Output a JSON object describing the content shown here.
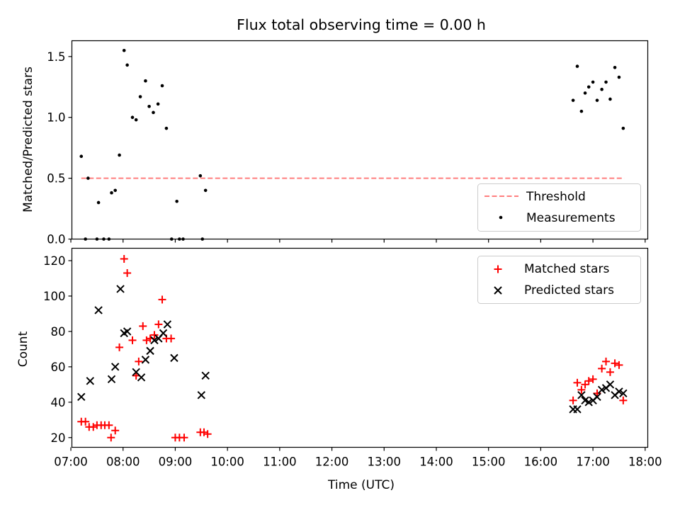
{
  "figure": {
    "title": "Flux total observing time = 0.00 h"
  },
  "colors": {
    "threshold": "#ff7f7f",
    "measurement": "#000000",
    "matched": "#ff0000",
    "predicted": "#000000"
  },
  "chart_data": [
    {
      "type": "scatter",
      "ylabel": "Matched/Predicted stars",
      "ylim": [
        0,
        1.63
      ],
      "xlim": [
        7.02,
        18.05
      ],
      "yticks": [
        0.0,
        0.5,
        1.0,
        1.5
      ],
      "ytick_labels": [
        "0.0",
        "0.5",
        "1.0",
        "1.5"
      ],
      "grid": false,
      "legend_position": "lower-right",
      "series": [
        {
          "name": "Threshold",
          "kind": "line",
          "style": "dashed",
          "x": [
            7.2,
            17.6
          ],
          "y": [
            0.5,
            0.5
          ]
        },
        {
          "name": "Measurements",
          "kind": "points",
          "x": [
            7.2,
            7.28,
            7.33,
            7.5,
            7.53,
            7.63,
            7.73,
            7.78,
            7.85,
            7.93,
            8.02,
            8.08,
            8.18,
            8.25,
            8.33,
            8.43,
            8.5,
            8.58,
            8.67,
            8.75,
            8.83,
            8.93,
            9.03,
            9.08,
            9.15,
            9.48,
            9.52,
            9.58,
            16.62,
            16.7,
            16.78,
            16.85,
            16.92,
            17.0,
            17.08,
            17.17,
            17.25,
            17.33,
            17.42,
            17.5,
            17.58
          ],
          "y": [
            0.68,
            0.0,
            0.5,
            0.0,
            0.3,
            0.0,
            0.0,
            0.38,
            0.4,
            0.69,
            1.55,
            1.43,
            1.0,
            0.98,
            1.17,
            1.3,
            1.09,
            1.04,
            1.11,
            1.26,
            0.91,
            0.0,
            0.31,
            0.0,
            0.0,
            0.52,
            0.0,
            0.4,
            1.14,
            1.42,
            1.05,
            1.2,
            1.25,
            1.29,
            1.14,
            1.23,
            1.29,
            1.15,
            1.41,
            1.33,
            0.91
          ]
        }
      ]
    },
    {
      "type": "scatter",
      "ylabel": "Count",
      "xlabel": "Time (UTC)",
      "ylim": [
        14.5,
        127
      ],
      "xlim": [
        7.02,
        18.05
      ],
      "yticks": [
        20,
        40,
        60,
        80,
        100,
        120
      ],
      "ytick_labels": [
        "20",
        "40",
        "60",
        "80",
        "100",
        "120"
      ],
      "xticks": [
        7,
        8,
        9,
        10,
        11,
        12,
        13,
        14,
        15,
        16,
        17,
        18
      ],
      "xtick_labels": [
        "07:00",
        "08:00",
        "09:00",
        "10:00",
        "11:00",
        "12:00",
        "13:00",
        "14:00",
        "15:00",
        "16:00",
        "17:00",
        "18:00"
      ],
      "grid": false,
      "legend_position": "top-right",
      "series": [
        {
          "name": "Matched stars",
          "marker": "plus",
          "x": [
            7.2,
            7.28,
            7.35,
            7.43,
            7.5,
            7.58,
            7.65,
            7.73,
            7.77,
            7.85,
            7.93,
            8.02,
            8.08,
            8.18,
            8.25,
            8.3,
            8.38,
            8.45,
            8.52,
            8.6,
            8.68,
            8.75,
            8.83,
            8.92,
            9.0,
            9.08,
            9.17,
            9.48,
            9.55,
            9.62,
            16.62,
            16.7,
            16.78,
            16.85,
            16.92,
            17.0,
            17.08,
            17.17,
            17.25,
            17.33,
            17.42,
            17.5,
            17.58
          ],
          "y": [
            29,
            29,
            26,
            26,
            27,
            27,
            27,
            27,
            20,
            24,
            71,
            121,
            113,
            75,
            55,
            63,
            83,
            75,
            76,
            78,
            84,
            98,
            76,
            76,
            20,
            20,
            20,
            23,
            23,
            22,
            41,
            51,
            47,
            50,
            52,
            53,
            45,
            59,
            63,
            57,
            62,
            61,
            41
          ]
        },
        {
          "name": "Predicted stars",
          "marker": "x",
          "x": [
            7.2,
            7.37,
            7.53,
            7.78,
            7.85,
            7.95,
            8.02,
            8.08,
            8.25,
            8.35,
            8.43,
            8.52,
            8.6,
            8.68,
            8.77,
            8.85,
            8.98,
            9.5,
            9.58,
            16.62,
            16.7,
            16.78,
            16.85,
            16.92,
            17.0,
            17.08,
            17.17,
            17.25,
            17.33,
            17.42,
            17.5,
            17.58
          ],
          "y": [
            43,
            52,
            92,
            53,
            60,
            104,
            79,
            80,
            57,
            54,
            64,
            69,
            75,
            76,
            79,
            84,
            65,
            44,
            55,
            36,
            36,
            44,
            41,
            40,
            41,
            43,
            47,
            48,
            50,
            44,
            46,
            45
          ]
        }
      ]
    }
  ]
}
